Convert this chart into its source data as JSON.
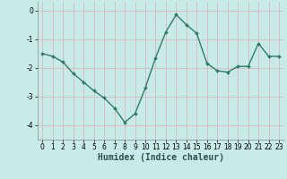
{
  "x": [
    0,
    1,
    2,
    3,
    4,
    5,
    6,
    7,
    8,
    9,
    10,
    11,
    12,
    13,
    14,
    15,
    16,
    17,
    18,
    19,
    20,
    21,
    22,
    23
  ],
  "y": [
    -1.5,
    -1.6,
    -1.8,
    -2.2,
    -2.5,
    -2.8,
    -3.05,
    -3.4,
    -3.9,
    -3.6,
    -2.7,
    -1.65,
    -0.75,
    -0.15,
    -0.5,
    -0.8,
    -1.85,
    -2.1,
    -2.15,
    -1.95,
    -1.95,
    -1.15,
    -1.6,
    -1.6
  ],
  "line_color": "#2E7D6B",
  "marker": "D",
  "marker_size": 2.0,
  "background_color": "#C8EAE8",
  "grid_color": "#D8B8B8",
  "xlabel": "Humidex (Indice chaleur)",
  "ylim": [
    -4.5,
    0.3
  ],
  "xlim": [
    -0.5,
    23.5
  ],
  "yticks": [
    0,
    -1,
    -2,
    -3,
    -4
  ],
  "xticks": [
    0,
    1,
    2,
    3,
    4,
    5,
    6,
    7,
    8,
    9,
    10,
    11,
    12,
    13,
    14,
    15,
    16,
    17,
    18,
    19,
    20,
    21,
    22,
    23
  ],
  "tick_fontsize": 5.5,
  "xlabel_fontsize": 7.0,
  "line_width": 1.0
}
